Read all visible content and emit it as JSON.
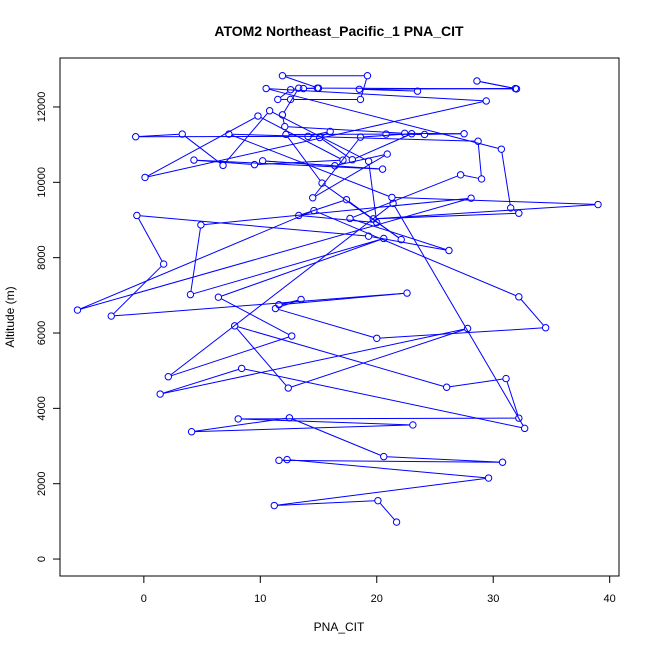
{
  "chart_data": {
    "type": "line",
    "title": "ATOM2 Northeast_Pacific_1 PNA_CIT",
    "xlabel": "PNA_CIT",
    "ylabel": "Altitude (m)",
    "xlim": [
      -7.2,
      40.8
    ],
    "ylim": [
      -450,
      13300
    ],
    "x_ticks": [
      0,
      10,
      20,
      30,
      40
    ],
    "y_ticks": [
      0,
      2000,
      4000,
      6000,
      8000,
      10000,
      12000
    ],
    "grid": false,
    "legend": "none",
    "color": "#0000ff",
    "markers": "open-circle",
    "series": [
      {
        "x": [
          21.7,
          20.1,
          11.2,
          29.6,
          12.3,
          11.6,
          30.8,
          20.6,
          12.5,
          4.1,
          23.1,
          8.1,
          32.2,
          31.1,
          26.0,
          7.8,
          12.4,
          27.8,
          1.4,
          8.4,
          32.7,
          21.4,
          2.1,
          12.7,
          6.4,
          20.6,
          4.0,
          4.9,
          28.1,
          -5.7,
          14.6,
          32.2,
          34.5,
          20.0,
          11.3,
          13.5,
          11.6,
          22.6,
          -2.8,
          1.7,
          -0.6,
          19.3,
          26.2,
          17.7,
          27.2,
          29.0,
          28.7,
          7.3,
          21.3,
          39.0,
          19.7,
          32.2,
          31.5,
          30.7,
          10.5,
          29.4,
          0.1,
          9.8,
          17.1,
          9.5,
          4.3,
          20.5,
          10.2,
          16.4,
          20.9,
          14.5,
          18.6,
          23.0,
          17.9,
          15.1,
          16.0,
          14.1,
          -0.7,
          3.3,
          6.8,
          10.8,
          19.3,
          20.0,
          13.3,
          17.4,
          22.1,
          15.3,
          12.2,
          20.8,
          24.1,
          27.5,
          22.4,
          12.1,
          11.9,
          13.3,
          12.6,
          11.5,
          12.6,
          18.6,
          19.2,
          11.9,
          15.0,
          13.7,
          14.9,
          32.0,
          28.6,
          31.9,
          18.5,
          23.5
        ],
        "y": [
          980,
          1550,
          1420,
          2150,
          2640,
          2620,
          2570,
          2720,
          3750,
          3380,
          3560,
          3720,
          3740,
          4790,
          4560,
          6190,
          4540,
          6120,
          4380,
          5060,
          3470,
          9440,
          4840,
          5920,
          6950,
          8510,
          7020,
          8870,
          9580,
          6610,
          9250,
          6960,
          6140,
          5860,
          6650,
          6890,
          6750,
          7060,
          6450,
          7830,
          9120,
          8570,
          8190,
          9040,
          10200,
          10090,
          11090,
          11280,
          9600,
          9410,
          9030,
          9180,
          9320,
          10880,
          12490,
          12160,
          10130,
          11760,
          10590,
          10470,
          10590,
          10350,
          10570,
          10440,
          10750,
          9590,
          11200,
          11290,
          10600,
          11190,
          11350,
          11220,
          11210,
          11280,
          10450,
          11900,
          10560,
          8930,
          9120,
          9540,
          8480,
          9980,
          11270,
          11280,
          11270,
          11290,
          11300,
          11480,
          11790,
          12500,
          12460,
          12200,
          12200,
          12200,
          12830,
          12830,
          12500,
          12490,
          12500,
          12480,
          12690,
          12490,
          12470,
          12420
        ]
      }
    ]
  }
}
